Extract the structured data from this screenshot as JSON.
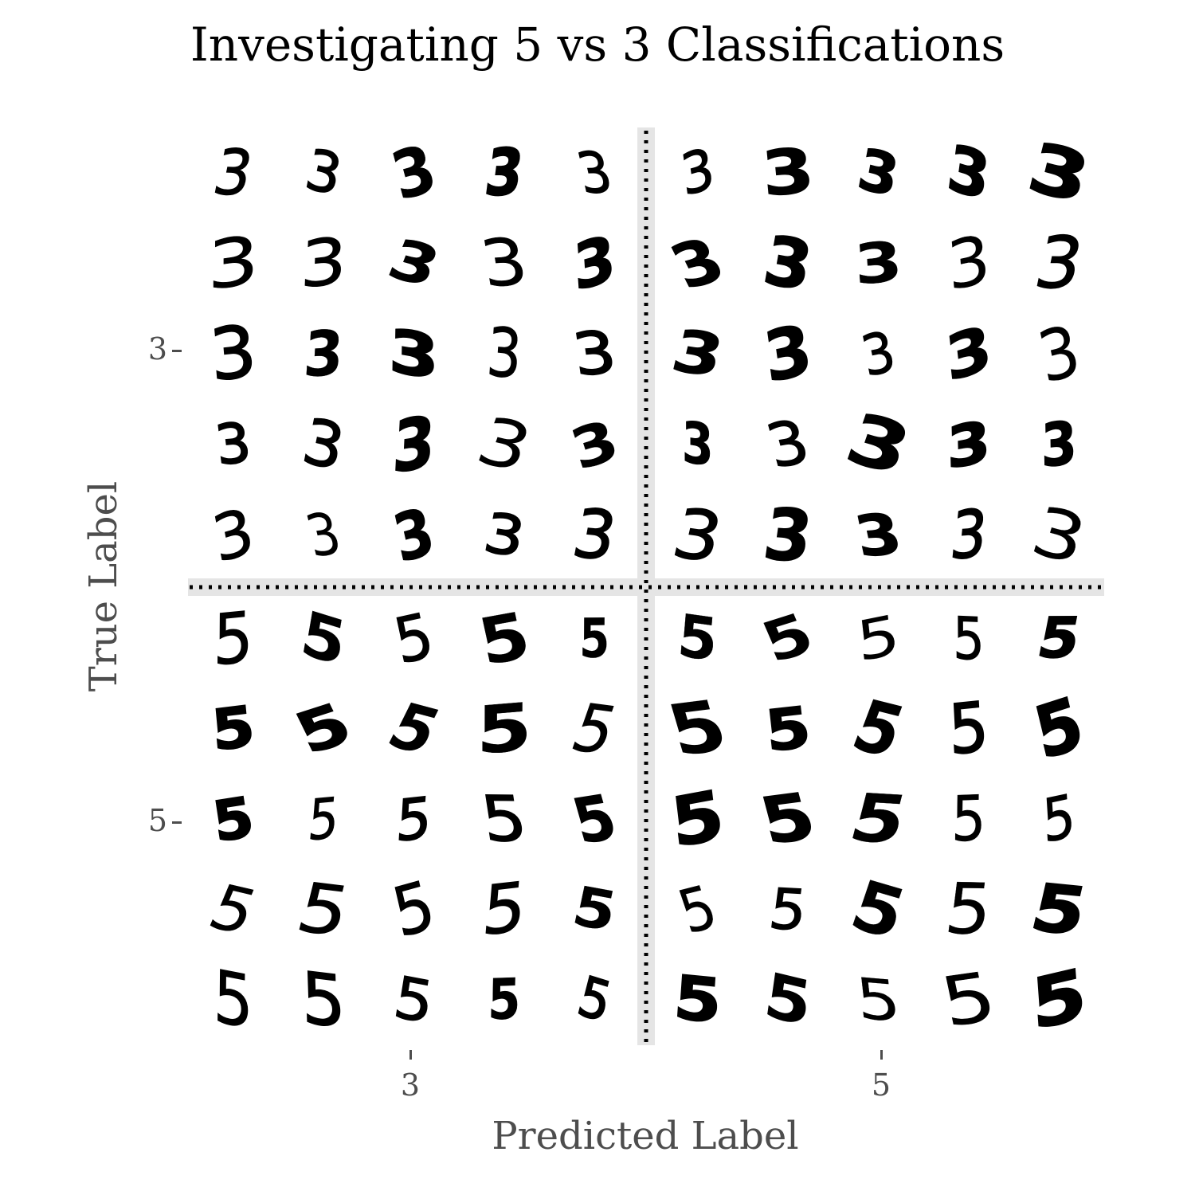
{
  "chart_data": {
    "type": "image-grid",
    "title": "Investigating 5 vs 3 Classifications",
    "xlabel": "Predicted Label",
    "ylabel": "True Label",
    "x_categories": [
      "3",
      "5"
    ],
    "y_categories": [
      "3",
      "5"
    ],
    "images_per_cell": 25,
    "grid_per_cell": [
      5,
      5
    ],
    "quadrants": [
      {
        "true": "3",
        "predicted": "3",
        "digit_shown": "3",
        "count": 25
      },
      {
        "true": "3",
        "predicted": "5",
        "digit_shown": "3",
        "count": 25
      },
      {
        "true": "5",
        "predicted": "3",
        "digit_shown": "5",
        "count": 25
      },
      {
        "true": "5",
        "predicted": "5",
        "digit_shown": "5",
        "count": 25
      }
    ],
    "divider_style": "dotted",
    "grid": false,
    "colors": {
      "ink": "#000000",
      "divider_band": "#e5e5e5",
      "axis_text": "#4d4d4d",
      "title_text": "#000000"
    }
  }
}
